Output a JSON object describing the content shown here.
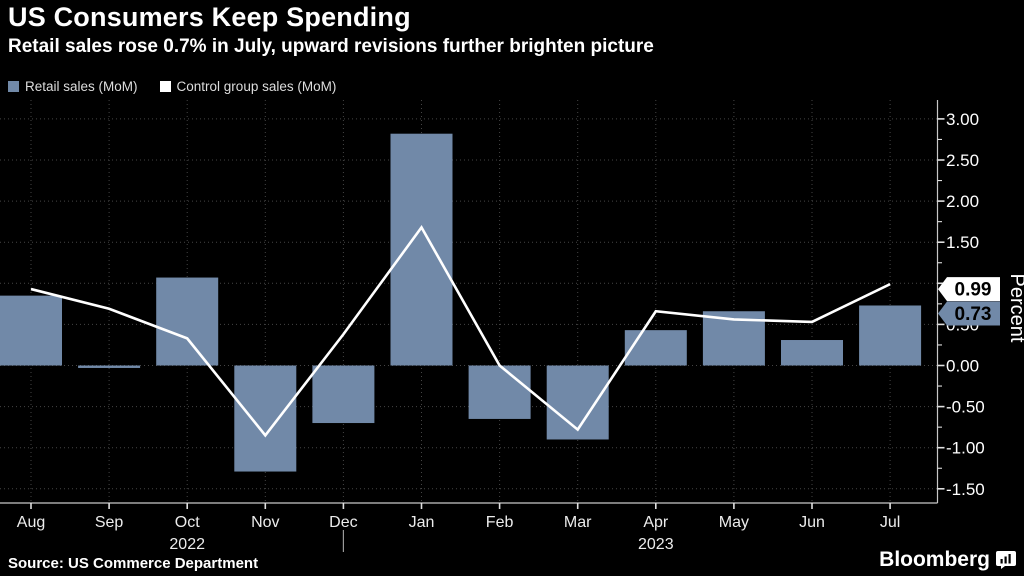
{
  "header": {
    "title": "US Consumers Keep Spending",
    "subtitle": "Retail sales rose 0.7% in July, upward revisions further brighten picture"
  },
  "legend": {
    "items": [
      {
        "label": "Retail sales (MoM)",
        "color": "#7189A8",
        "marker": "square"
      },
      {
        "label": "Control group sales (MoM)",
        "color": "#FFFFFF",
        "marker": "square"
      }
    ]
  },
  "chart_data": {
    "type": "combo",
    "categories": [
      "Aug",
      "Sep",
      "Oct",
      "Nov",
      "Dec",
      "Jan",
      "Feb",
      "Mar",
      "Apr",
      "May",
      "Jun",
      "Jul"
    ],
    "series": [
      {
        "name": "Retail sales (MoM)",
        "type": "bar",
        "color": "#7189A8",
        "values": [
          0.85,
          -0.03,
          1.07,
          -1.29,
          -0.7,
          2.82,
          -0.65,
          -0.9,
          0.43,
          0.66,
          0.31,
          0.73
        ]
      },
      {
        "name": "Control group sales (MoM)",
        "type": "line",
        "color": "#FFFFFF",
        "values": [
          0.93,
          0.69,
          0.33,
          -0.85,
          0.38,
          1.68,
          0.0,
          -0.78,
          0.66,
          0.56,
          0.53,
          0.99
        ]
      }
    ],
    "xlabel": "",
    "ylabel": "Percent",
    "ylim": [
      -1.67,
      3.23
    ],
    "yticks_major": [
      3.0,
      2.5,
      2.0,
      1.5,
      1.0,
      0.5,
      0.0,
      -0.5,
      -1.0,
      -1.5
    ],
    "minor_tick_step": 0.25,
    "grid": "dotted horizontal and vertical",
    "legend_position": "top-left",
    "axis_side": "right",
    "end_labels": [
      {
        "text": "0.99",
        "value": 0.99,
        "bg": "#FFFFFF",
        "series": "Control group sales (MoM)"
      },
      {
        "text": "0.73",
        "value": 0.73,
        "bg": "#7189A8",
        "series": "Retail sales (MoM)"
      }
    ],
    "year_labels": [
      {
        "under": "Oct",
        "text": "2022"
      },
      {
        "under": "Apr",
        "text": "2023"
      }
    ],
    "year_divider_under": "Dec"
  },
  "footer": {
    "source": "Source: US Commerce Department",
    "logo_text": "Bloomberg"
  }
}
